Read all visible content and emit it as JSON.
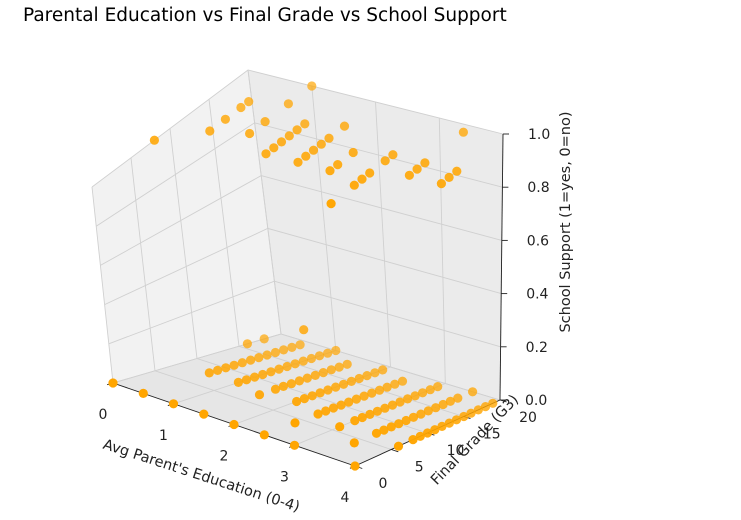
{
  "chart_data": {
    "type": "scatter",
    "projection": "3d",
    "title": "Parental Education vs Final Grade vs School Support",
    "xlabel": "Avg Parent's Education (0-4)",
    "ylabel": "Final Grade (G3)",
    "zlabel": "School Support (1=yes, 0=no)",
    "xlim": [
      0,
      4
    ],
    "ylim": [
      0,
      20
    ],
    "zlim": [
      0,
      1
    ],
    "xticks": [
      "0",
      "1",
      "2",
      "3",
      "4"
    ],
    "yticks": [
      "0",
      "5",
      "10",
      "15",
      "20"
    ],
    "zticks": [
      "0.0",
      "0.2",
      "0.4",
      "0.6",
      "0.8",
      "1.0"
    ],
    "grid": true,
    "marker_color": "#ffa500",
    "series": [
      {
        "points": [
          {
            "x": 0.0,
            "y": 0,
            "z": 0
          },
          {
            "x": 0.5,
            "y": 0,
            "z": 0
          },
          {
            "x": 1.0,
            "y": 0,
            "z": 0
          },
          {
            "x": 1.5,
            "y": 0,
            "z": 0
          },
          {
            "x": 2.0,
            "y": 0,
            "z": 0
          },
          {
            "x": 2.5,
            "y": 0,
            "z": 0
          },
          {
            "x": 3.0,
            "y": 0,
            "z": 0
          },
          {
            "x": 4.0,
            "y": 0,
            "z": 0
          },
          {
            "x": 2.5,
            "y": 4,
            "z": 0
          },
          {
            "x": 3.5,
            "y": 4,
            "z": 0
          },
          {
            "x": 4.0,
            "y": 6,
            "z": 0
          },
          {
            "x": 3.0,
            "y": 6,
            "z": 0
          },
          {
            "x": 1.5,
            "y": 7,
            "z": 0
          },
          {
            "x": 2.5,
            "y": 7,
            "z": 0
          },
          {
            "x": 3.5,
            "y": 7,
            "z": 0
          },
          {
            "x": 0.5,
            "y": 8,
            "z": 0
          },
          {
            "x": 1.0,
            "y": 8,
            "z": 0
          },
          {
            "x": 2.0,
            "y": 8,
            "z": 0
          },
          {
            "x": 2.5,
            "y": 8,
            "z": 0
          },
          {
            "x": 3.0,
            "y": 8,
            "z": 0
          },
          {
            "x": 3.5,
            "y": 8,
            "z": 0
          },
          {
            "x": 4.0,
            "y": 8,
            "z": 0
          },
          {
            "x": 0.5,
            "y": 9,
            "z": 0
          },
          {
            "x": 1.0,
            "y": 9,
            "z": 0
          },
          {
            "x": 1.5,
            "y": 9,
            "z": 0
          },
          {
            "x": 2.0,
            "y": 9,
            "z": 0
          },
          {
            "x": 2.5,
            "y": 9,
            "z": 0
          },
          {
            "x": 3.0,
            "y": 9,
            "z": 0
          },
          {
            "x": 3.5,
            "y": 9,
            "z": 0
          },
          {
            "x": 4.0,
            "y": 9,
            "z": 0
          },
          {
            "x": 0.5,
            "y": 10,
            "z": 0
          },
          {
            "x": 1.0,
            "y": 10,
            "z": 0
          },
          {
            "x": 1.5,
            "y": 10,
            "z": 0
          },
          {
            "x": 2.0,
            "y": 10,
            "z": 0
          },
          {
            "x": 2.5,
            "y": 10,
            "z": 0
          },
          {
            "x": 3.0,
            "y": 10,
            "z": 0
          },
          {
            "x": 3.5,
            "y": 10,
            "z": 0
          },
          {
            "x": 4.0,
            "y": 10,
            "z": 0
          },
          {
            "x": 0.5,
            "y": 11,
            "z": 0
          },
          {
            "x": 1.0,
            "y": 11,
            "z": 0
          },
          {
            "x": 1.5,
            "y": 11,
            "z": 0
          },
          {
            "x": 2.0,
            "y": 11,
            "z": 0
          },
          {
            "x": 2.5,
            "y": 11,
            "z": 0
          },
          {
            "x": 3.0,
            "y": 11,
            "z": 0
          },
          {
            "x": 3.5,
            "y": 11,
            "z": 0
          },
          {
            "x": 4.0,
            "y": 11,
            "z": 0
          },
          {
            "x": 0.5,
            "y": 12,
            "z": 0
          },
          {
            "x": 1.0,
            "y": 12,
            "z": 0
          },
          {
            "x": 1.5,
            "y": 12,
            "z": 0
          },
          {
            "x": 2.0,
            "y": 12,
            "z": 0
          },
          {
            "x": 2.5,
            "y": 12,
            "z": 0
          },
          {
            "x": 3.0,
            "y": 12,
            "z": 0
          },
          {
            "x": 3.5,
            "y": 12,
            "z": 0
          },
          {
            "x": 4.0,
            "y": 12,
            "z": 0
          },
          {
            "x": 0.5,
            "y": 13,
            "z": 0
          },
          {
            "x": 1.0,
            "y": 13,
            "z": 0
          },
          {
            "x": 1.5,
            "y": 13,
            "z": 0
          },
          {
            "x": 2.0,
            "y": 13,
            "z": 0
          },
          {
            "x": 2.5,
            "y": 13,
            "z": 0
          },
          {
            "x": 3.0,
            "y": 13,
            "z": 0
          },
          {
            "x": 3.5,
            "y": 13,
            "z": 0
          },
          {
            "x": 4.0,
            "y": 13,
            "z": 0
          },
          {
            "x": 0.5,
            "y": 14,
            "z": 0
          },
          {
            "x": 1.0,
            "y": 14,
            "z": 0
          },
          {
            "x": 1.5,
            "y": 14,
            "z": 0
          },
          {
            "x": 2.0,
            "y": 14,
            "z": 0
          },
          {
            "x": 2.5,
            "y": 14,
            "z": 0
          },
          {
            "x": 3.0,
            "y": 14,
            "z": 0
          },
          {
            "x": 3.5,
            "y": 14,
            "z": 0
          },
          {
            "x": 4.0,
            "y": 14,
            "z": 0
          },
          {
            "x": 0.5,
            "y": 15,
            "z": 0
          },
          {
            "x": 1.0,
            "y": 15,
            "z": 0
          },
          {
            "x": 1.5,
            "y": 15,
            "z": 0
          },
          {
            "x": 2.0,
            "y": 15,
            "z": 0
          },
          {
            "x": 2.5,
            "y": 15,
            "z": 0
          },
          {
            "x": 3.0,
            "y": 15,
            "z": 0
          },
          {
            "x": 3.5,
            "y": 15,
            "z": 0
          },
          {
            "x": 4.0,
            "y": 15,
            "z": 0
          },
          {
            "x": 0.5,
            "y": 16,
            "z": 0
          },
          {
            "x": 1.0,
            "y": 16,
            "z": 0
          },
          {
            "x": 1.5,
            "y": 16,
            "z": 0
          },
          {
            "x": 2.0,
            "y": 16,
            "z": 0
          },
          {
            "x": 2.5,
            "y": 16,
            "z": 0
          },
          {
            "x": 3.0,
            "y": 16,
            "z": 0
          },
          {
            "x": 3.5,
            "y": 16,
            "z": 0
          },
          {
            "x": 4.0,
            "y": 16,
            "z": 0
          },
          {
            "x": 0.5,
            "y": 17,
            "z": 0
          },
          {
            "x": 1.0,
            "y": 17,
            "z": 0
          },
          {
            "x": 1.5,
            "y": 17,
            "z": 0
          },
          {
            "x": 2.0,
            "y": 17,
            "z": 0
          },
          {
            "x": 2.5,
            "y": 17,
            "z": 0
          },
          {
            "x": 3.0,
            "y": 17,
            "z": 0
          },
          {
            "x": 3.5,
            "y": 17,
            "z": 0
          },
          {
            "x": 4.0,
            "y": 17,
            "z": 0
          },
          {
            "x": 0.5,
            "y": 18,
            "z": 0
          },
          {
            "x": 1.0,
            "y": 18,
            "z": 0
          },
          {
            "x": 1.5,
            "y": 18,
            "z": 0
          },
          {
            "x": 2.0,
            "y": 18,
            "z": 0
          },
          {
            "x": 2.5,
            "y": 18,
            "z": 0
          },
          {
            "x": 3.0,
            "y": 18,
            "z": 0
          },
          {
            "x": 3.5,
            "y": 18,
            "z": 0
          },
          {
            "x": 4.0,
            "y": 18,
            "z": 0
          },
          {
            "x": 0.5,
            "y": 19,
            "z": 0
          },
          {
            "x": 1.0,
            "y": 19,
            "z": 0
          },
          {
            "x": 2.0,
            "y": 19,
            "z": 0
          },
          {
            "x": 3.0,
            "y": 19,
            "z": 0
          },
          {
            "x": 4.0,
            "y": 19,
            "z": 0
          },
          {
            "x": 1.0,
            "y": 20,
            "z": 0
          },
          {
            "x": 3.5,
            "y": 20,
            "z": 0
          },
          {
            "x": 0.0,
            "y": 18,
            "z": 0
          },
          {
            "x": 0.0,
            "y": 16,
            "z": 0
          },
          {
            "x": 1.5,
            "y": 13,
            "z": 0.2
          },
          {
            "x": 0.0,
            "y": 8,
            "z": 1
          },
          {
            "x": 0.5,
            "y": 11,
            "z": 1
          },
          {
            "x": 0.5,
            "y": 13,
            "z": 1
          },
          {
            "x": 0.5,
            "y": 15,
            "z": 1
          },
          {
            "x": 0.5,
            "y": 16,
            "z": 1
          },
          {
            "x": 1.0,
            "y": 12,
            "z": 1
          },
          {
            "x": 1.0,
            "y": 14,
            "z": 1
          },
          {
            "x": 1.0,
            "y": 17,
            "z": 1
          },
          {
            "x": 1.0,
            "y": 20,
            "z": 1
          },
          {
            "x": 1.5,
            "y": 10,
            "z": 1
          },
          {
            "x": 1.5,
            "y": 11,
            "z": 1
          },
          {
            "x": 1.5,
            "y": 12,
            "z": 1
          },
          {
            "x": 1.5,
            "y": 13,
            "z": 1
          },
          {
            "x": 1.5,
            "y": 14,
            "z": 1
          },
          {
            "x": 1.5,
            "y": 15,
            "z": 1
          },
          {
            "x": 2.0,
            "y": 10,
            "z": 1
          },
          {
            "x": 2.0,
            "y": 11,
            "z": 1
          },
          {
            "x": 2.0,
            "y": 12,
            "z": 1
          },
          {
            "x": 2.0,
            "y": 13,
            "z": 1
          },
          {
            "x": 2.0,
            "y": 14,
            "z": 1
          },
          {
            "x": 2.0,
            "y": 16,
            "z": 1
          },
          {
            "x": 2.5,
            "y": 10,
            "z": 1
          },
          {
            "x": 2.5,
            "y": 11,
            "z": 1
          },
          {
            "x": 2.5,
            "y": 13,
            "z": 1
          },
          {
            "x": 3.0,
            "y": 6,
            "z": 1
          },
          {
            "x": 3.0,
            "y": 9,
            "z": 1
          },
          {
            "x": 3.0,
            "y": 10,
            "z": 1
          },
          {
            "x": 3.0,
            "y": 11,
            "z": 1
          },
          {
            "x": 3.0,
            "y": 13,
            "z": 1
          },
          {
            "x": 3.0,
            "y": 14,
            "z": 1
          },
          {
            "x": 3.5,
            "y": 12,
            "z": 1
          },
          {
            "x": 3.5,
            "y": 13,
            "z": 1
          },
          {
            "x": 3.5,
            "y": 14,
            "z": 1
          },
          {
            "x": 3.5,
            "y": 19,
            "z": 1
          },
          {
            "x": 4.0,
            "y": 12,
            "z": 1
          },
          {
            "x": 4.0,
            "y": 13,
            "z": 1
          },
          {
            "x": 4.0,
            "y": 14,
            "z": 1
          }
        ]
      }
    ]
  }
}
